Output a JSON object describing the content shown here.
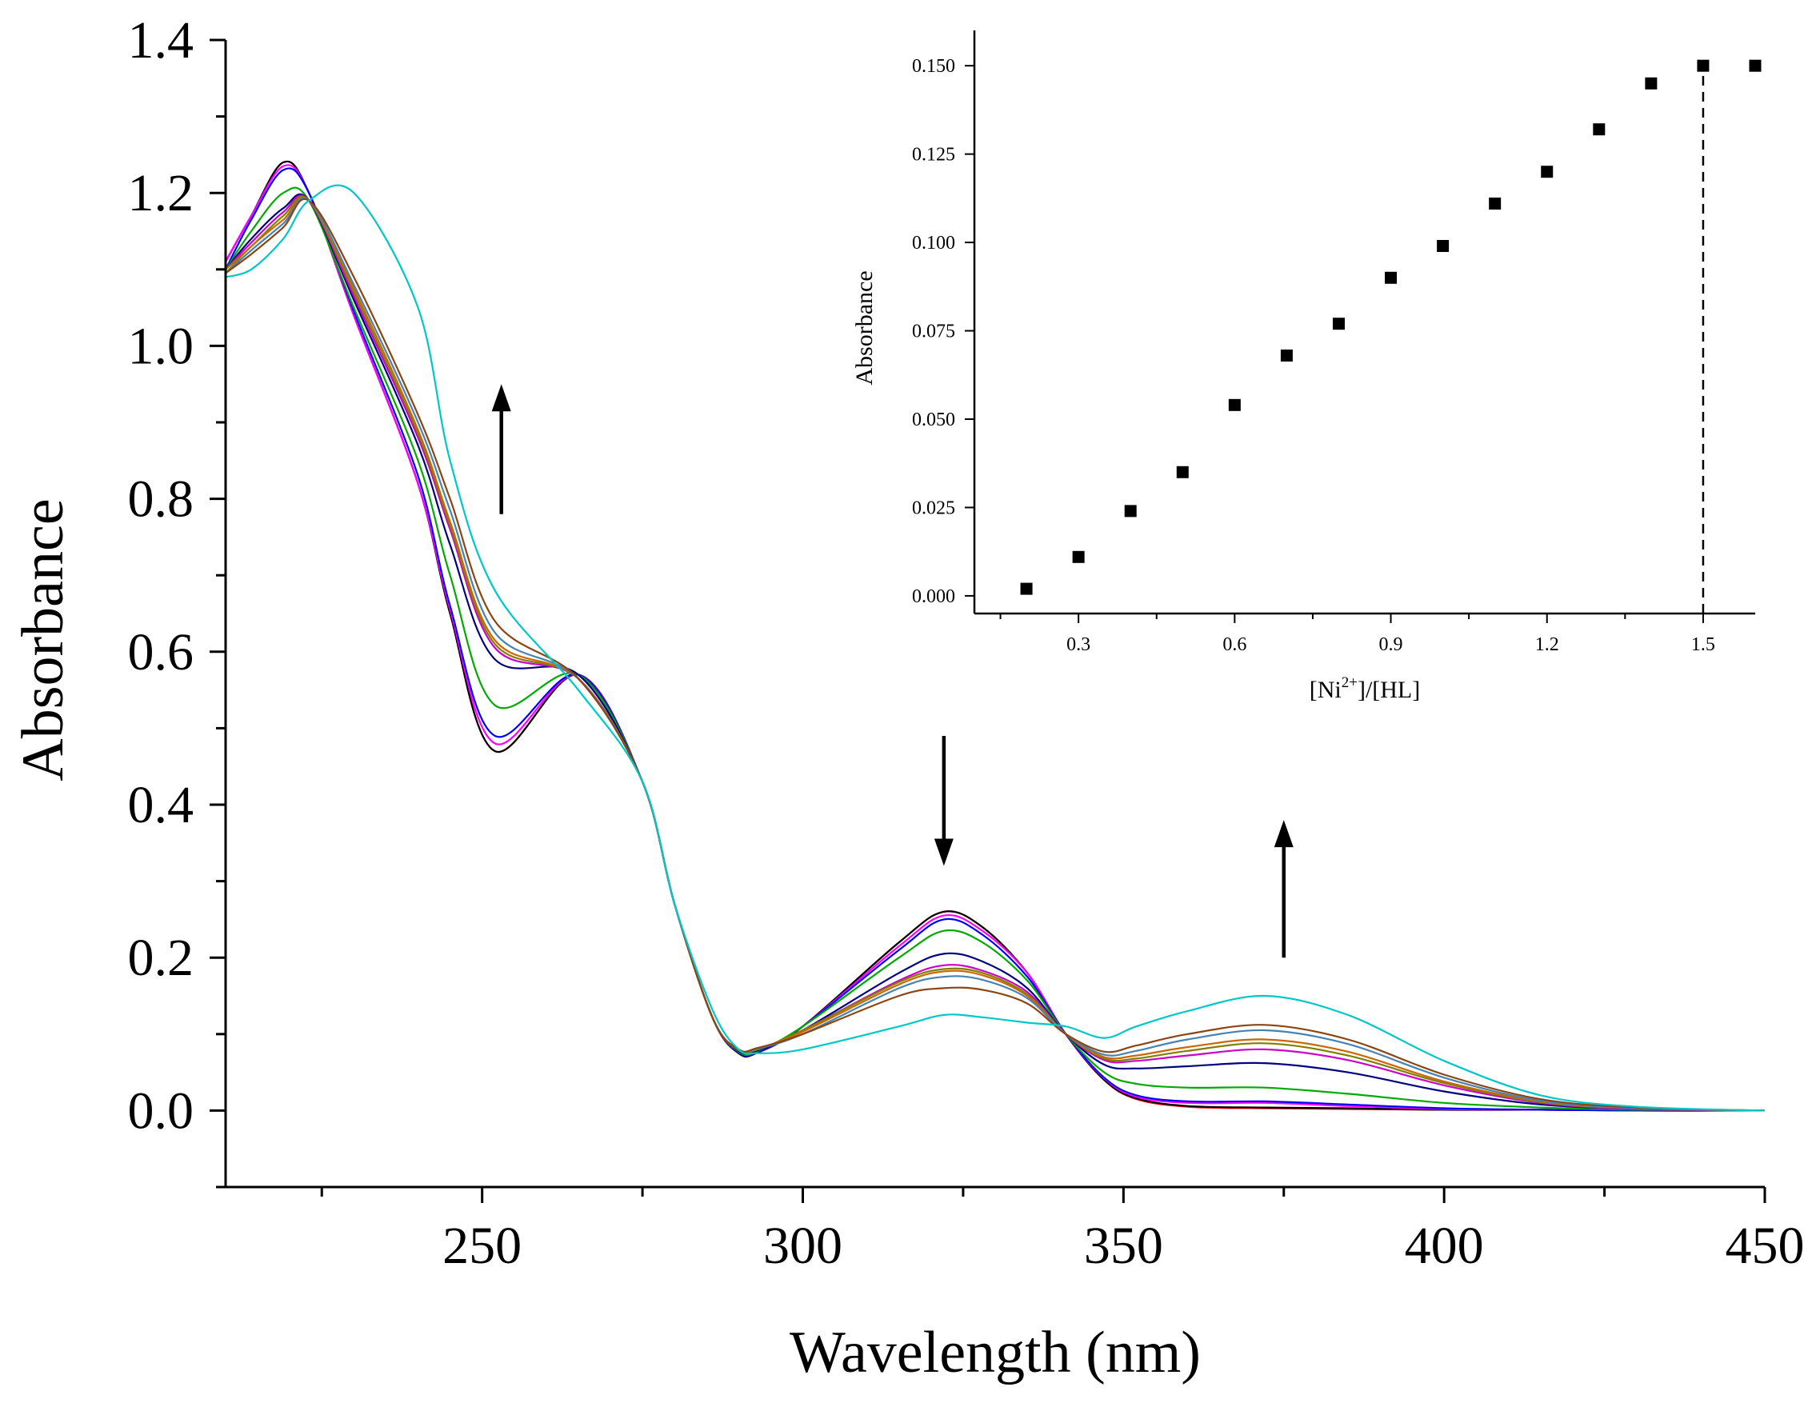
{
  "chart_data": [
    {
      "type": "line",
      "title": "",
      "xlabel": "Wavelength (nm)",
      "ylabel": "Absorbance",
      "xlim": [
        210,
        450
      ],
      "ylim": [
        -0.1,
        1.4
      ],
      "x_ticks": [
        250,
        300,
        350,
        400,
        450
      ],
      "x_tick_labels": [
        "250",
        "300",
        "350",
        "400",
        "450"
      ],
      "y_ticks": [
        0.0,
        0.2,
        0.4,
        0.6,
        0.8,
        1.0,
        1.2,
        1.4
      ],
      "y_tick_labels": [
        "0.0",
        "0.2",
        "0.4",
        "0.6",
        "0.8",
        "1.0",
        "1.2",
        "1.4"
      ],
      "x_minor_ticks": [
        225,
        275,
        325,
        375,
        425
      ],
      "y_minor_ticks": [
        -0.1,
        0.1,
        0.3,
        0.5,
        0.7,
        0.9,
        1.1,
        1.3
      ],
      "grid": false,
      "legend": "none",
      "anchor_wavelengths": [
        210,
        214,
        219,
        223,
        230,
        240,
        245,
        252,
        265,
        275,
        280,
        286,
        290,
        293,
        300,
        315,
        322,
        328,
        335,
        341,
        347,
        352,
        360,
        372,
        385,
        400,
        415,
        430,
        450
      ],
      "series": [
        {
          "name": "s1",
          "color": "#ff0000",
          "values": [
            1.11,
            1.17,
            1.24,
            1.2,
            1.04,
            0.82,
            0.65,
            0.47,
            0.57,
            0.43,
            0.27,
            0.12,
            0.075,
            0.076,
            0.11,
            0.22,
            0.26,
            0.24,
            0.18,
            0.1,
            0.04,
            0.015,
            0.005,
            0.003,
            0.002,
            0.001,
            0.001,
            0.0,
            0.0
          ]
        },
        {
          "name": "s2",
          "color": "#000000",
          "values": [
            1.11,
            1.17,
            1.24,
            1.2,
            1.04,
            0.82,
            0.65,
            0.47,
            0.57,
            0.43,
            0.27,
            0.12,
            0.075,
            0.076,
            0.11,
            0.22,
            0.26,
            0.24,
            0.18,
            0.1,
            0.04,
            0.016,
            0.006,
            0.004,
            0.003,
            0.001,
            0.001,
            0.0,
            0.0
          ]
        },
        {
          "name": "s3",
          "color": "#ff00ff",
          "values": [
            1.11,
            1.17,
            1.235,
            1.2,
            1.04,
            0.82,
            0.655,
            0.48,
            0.57,
            0.43,
            0.27,
            0.12,
            0.076,
            0.077,
            0.11,
            0.215,
            0.255,
            0.235,
            0.18,
            0.1,
            0.042,
            0.018,
            0.01,
            0.01,
            0.006,
            0.002,
            0.001,
            0.0,
            0.0
          ]
        },
        {
          "name": "s4",
          "color": "#0000ff",
          "values": [
            1.1,
            1.165,
            1.23,
            1.2,
            1.045,
            0.83,
            0.66,
            0.49,
            0.57,
            0.43,
            0.27,
            0.12,
            0.076,
            0.077,
            0.11,
            0.21,
            0.25,
            0.23,
            0.175,
            0.1,
            0.043,
            0.02,
            0.012,
            0.012,
            0.008,
            0.003,
            0.001,
            0.0,
            0.0
          ]
        },
        {
          "name": "s5",
          "color": "#00aa00",
          "values": [
            1.1,
            1.15,
            1.2,
            1.19,
            1.05,
            0.85,
            0.7,
            0.53,
            0.57,
            0.43,
            0.27,
            0.12,
            0.077,
            0.078,
            0.11,
            0.2,
            0.235,
            0.22,
            0.17,
            0.1,
            0.05,
            0.035,
            0.03,
            0.03,
            0.022,
            0.01,
            0.004,
            0.001,
            0.0
          ]
        },
        {
          "name": "s6",
          "color": "#000080",
          "values": [
            1.1,
            1.14,
            1.18,
            1.19,
            1.06,
            0.87,
            0.74,
            0.59,
            0.57,
            0.43,
            0.27,
            0.12,
            0.078,
            0.079,
            0.105,
            0.18,
            0.205,
            0.195,
            0.16,
            0.1,
            0.06,
            0.055,
            0.058,
            0.062,
            0.05,
            0.025,
            0.008,
            0.002,
            0.0
          ]
        },
        {
          "name": "s7",
          "color": "#cc00cc",
          "values": [
            1.1,
            1.135,
            1.175,
            1.19,
            1.065,
            0.88,
            0.76,
            0.605,
            0.565,
            0.43,
            0.27,
            0.12,
            0.079,
            0.08,
            0.105,
            0.17,
            0.19,
            0.183,
            0.155,
            0.1,
            0.066,
            0.065,
            0.072,
            0.08,
            0.066,
            0.033,
            0.01,
            0.002,
            0.0
          ]
        },
        {
          "name": "s8",
          "color": "#808000",
          "values": [
            1.1,
            1.13,
            1.17,
            1.19,
            1.07,
            0.885,
            0.765,
            0.61,
            0.565,
            0.43,
            0.27,
            0.12,
            0.079,
            0.08,
            0.105,
            0.168,
            0.185,
            0.18,
            0.152,
            0.1,
            0.068,
            0.068,
            0.078,
            0.088,
            0.072,
            0.036,
            0.011,
            0.003,
            0.0
          ]
        },
        {
          "name": "s9",
          "color": "#cc6600",
          "values": [
            1.095,
            1.13,
            1.165,
            1.19,
            1.075,
            0.89,
            0.77,
            0.615,
            0.565,
            0.43,
            0.27,
            0.12,
            0.08,
            0.081,
            0.103,
            0.165,
            0.182,
            0.177,
            0.15,
            0.1,
            0.07,
            0.072,
            0.083,
            0.093,
            0.077,
            0.038,
            0.012,
            0.003,
            0.0
          ]
        },
        {
          "name": "s10",
          "color": "#4682b4",
          "values": [
            1.095,
            1.125,
            1.16,
            1.19,
            1.08,
            0.9,
            0.785,
            0.625,
            0.565,
            0.43,
            0.27,
            0.12,
            0.08,
            0.081,
            0.1,
            0.16,
            0.175,
            0.171,
            0.147,
            0.1,
            0.073,
            0.078,
            0.093,
            0.105,
            0.087,
            0.043,
            0.013,
            0.003,
            0.0
          ]
        },
        {
          "name": "s11",
          "color": "#8b4513",
          "values": [
            1.095,
            1.12,
            1.155,
            1.19,
            1.09,
            0.91,
            0.8,
            0.64,
            0.565,
            0.43,
            0.27,
            0.12,
            0.08,
            0.082,
            0.1,
            0.15,
            0.16,
            0.158,
            0.14,
            0.1,
            0.077,
            0.085,
            0.1,
            0.112,
            0.093,
            0.047,
            0.015,
            0.004,
            0.0
          ]
        },
        {
          "name": "s12",
          "color": "#00c8c8",
          "values": [
            1.09,
            1.1,
            1.14,
            1.19,
            1.2,
            1.05,
            0.85,
            0.68,
            0.55,
            0.43,
            0.27,
            0.13,
            0.08,
            0.075,
            0.08,
            0.11,
            0.125,
            0.122,
            0.115,
            0.11,
            0.095,
            0.11,
            0.13,
            0.15,
            0.125,
            0.065,
            0.02,
            0.005,
            0.0
          ]
        }
      ],
      "annotations": [
        {
          "label": "increase",
          "direction": "up",
          "x": 253,
          "y_from": 0.78,
          "y_to": 0.95
        },
        {
          "label": "decrease",
          "direction": "down",
          "x": 322,
          "y_from": 0.49,
          "y_to": 0.32
        },
        {
          "label": "increase",
          "direction": "up",
          "x": 375,
          "y_from": 0.2,
          "y_to": 0.38
        }
      ]
    },
    {
      "type": "scatter",
      "title": "",
      "xlabel": "[Ni2+]/[HL]",
      "xlabel_parts": [
        "[Ni",
        "2+",
        "]/[HL]"
      ],
      "ylabel": "Absorbance",
      "xlim": [
        0.1,
        1.6
      ],
      "ylim": [
        -0.005,
        0.16
      ],
      "x_ticks": [
        0.3,
        0.6,
        0.9,
        1.2,
        1.5
      ],
      "x_tick_labels": [
        "0.3",
        "0.6",
        "0.9",
        "1.2",
        "1.5"
      ],
      "y_ticks": [
        0.0,
        0.025,
        0.05,
        0.075,
        0.1,
        0.125,
        0.15
      ],
      "y_tick_labels": [
        "0.000",
        "0.025",
        "0.050",
        "0.075",
        "0.100",
        "0.125",
        "0.150"
      ],
      "x": [
        0.2,
        0.3,
        0.4,
        0.5,
        0.6,
        0.7,
        0.8,
        0.9,
        1.0,
        1.1,
        1.2,
        1.3,
        1.4,
        1.5,
        1.6
      ],
      "y": [
        0.002,
        0.011,
        0.024,
        0.035,
        0.054,
        0.068,
        0.077,
        0.09,
        0.099,
        0.111,
        0.12,
        0.132,
        0.145,
        0.15,
        0.15
      ],
      "reference_line": {
        "x": 1.5,
        "style": "dashed"
      },
      "marker": "square",
      "color": "#000000"
    }
  ]
}
